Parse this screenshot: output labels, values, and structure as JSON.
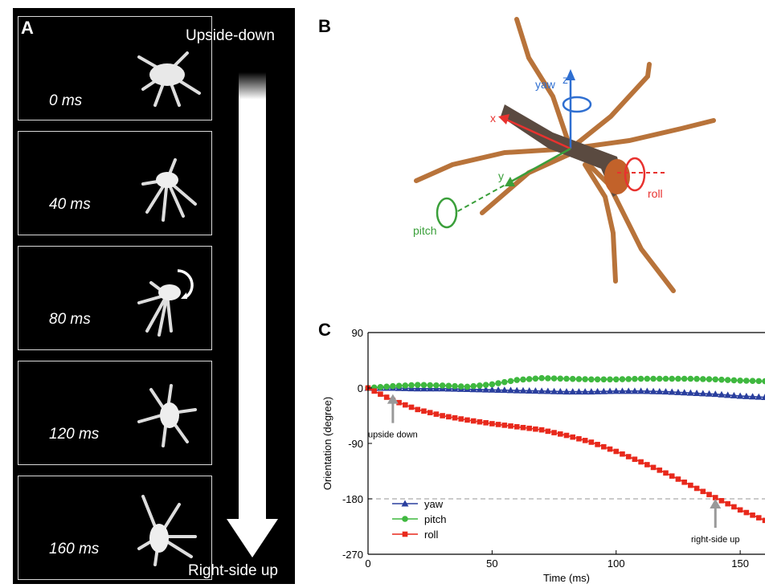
{
  "panel_a": {
    "label": "A",
    "top_text": "Upside-down",
    "bottom_text": "Right-side up",
    "frames": [
      {
        "time": "0 ms"
      },
      {
        "time": "40 ms"
      },
      {
        "time": "80 ms"
      },
      {
        "time": "120 ms"
      },
      {
        "time": "160 ms"
      }
    ]
  },
  "panel_b": {
    "label": "B",
    "axes": {
      "x": "x",
      "y": "y",
      "z": "z"
    },
    "rotations": {
      "yaw": "yaw",
      "pitch": "pitch",
      "roll": "roll"
    },
    "colors": {
      "x": "#e8322f",
      "y": "#3a9f3a",
      "z": "#2f6fd1",
      "leg": "#b8733a"
    }
  },
  "panel_c": {
    "label": "C"
  },
  "chart_data": {
    "type": "line",
    "xlabel": "Time (ms)",
    "ylabel": "Orientation (degree)",
    "xlim": [
      0,
      160
    ],
    "ylim": [
      -270,
      90
    ],
    "xticks": [
      0,
      50,
      100,
      150
    ],
    "yticks": [
      90,
      0,
      -90,
      -180,
      -270
    ],
    "legend_position": "bottom-left",
    "reference_line": {
      "y": -180,
      "style": "dashed"
    },
    "annotations": [
      {
        "text": "upside down",
        "x": 10,
        "y": -10
      },
      {
        "text": "right-side up",
        "x": 140,
        "y": -180
      }
    ],
    "series": [
      {
        "name": "yaw",
        "color": "#2a3f9e",
        "marker": "triangle",
        "x": [
          0,
          10,
          20,
          30,
          40,
          50,
          60,
          70,
          80,
          90,
          100,
          110,
          120,
          130,
          140,
          150,
          160
        ],
        "values": [
          0,
          0,
          -1,
          -1,
          -2,
          -3,
          -4,
          -5,
          -6,
          -6,
          -5,
          -5,
          -6,
          -8,
          -10,
          -13,
          -15
        ]
      },
      {
        "name": "pitch",
        "color": "#3fb83f",
        "marker": "circle",
        "x": [
          0,
          10,
          20,
          30,
          40,
          50,
          60,
          70,
          80,
          90,
          100,
          110,
          120,
          130,
          140,
          150,
          160
        ],
        "values": [
          0,
          3,
          5,
          4,
          2,
          6,
          13,
          16,
          15,
          14,
          14,
          15,
          15,
          15,
          14,
          12,
          11
        ]
      },
      {
        "name": "roll",
        "color": "#e8291c",
        "marker": "square",
        "x": [
          0,
          10,
          20,
          30,
          40,
          50,
          60,
          70,
          80,
          90,
          100,
          110,
          120,
          130,
          140,
          150,
          160
        ],
        "values": [
          0,
          -20,
          -35,
          -45,
          -52,
          -58,
          -63,
          -68,
          -77,
          -88,
          -103,
          -120,
          -138,
          -158,
          -178,
          -198,
          -215
        ]
      }
    ]
  }
}
